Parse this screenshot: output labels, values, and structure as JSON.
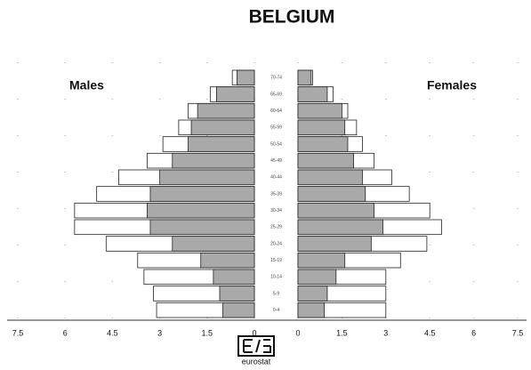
{
  "chart_data": {
    "type": "pyramid",
    "title": "BELGIUM",
    "left_label": "Males",
    "right_label": "Females",
    "logo_text": "eurostat",
    "categories": [
      "70-74",
      "65-69",
      "60-64",
      "55-59",
      "50-54",
      "45-49",
      "40-44",
      "35-39",
      "30-34",
      "25-29",
      "20-24",
      "15-19",
      "10-14",
      "5-9",
      "0-4"
    ],
    "series": [
      {
        "side": "left",
        "color": "#ffffff",
        "values": [
          0.7,
          1.4,
          2.1,
          2.4,
          2.9,
          3.4,
          4.3,
          5.0,
          5.7,
          5.7,
          4.7,
          3.7,
          3.5,
          3.2,
          3.1
        ]
      },
      {
        "side": "left",
        "color": "#a9a9a9",
        "values": [
          0.55,
          1.2,
          1.8,
          2.0,
          2.1,
          2.6,
          3.0,
          3.3,
          3.4,
          3.3,
          2.6,
          1.7,
          1.3,
          1.1,
          1.0
        ]
      },
      {
        "side": "right",
        "color": "#ffffff",
        "values": [
          0.5,
          1.2,
          1.7,
          2.0,
          2.2,
          2.6,
          3.2,
          3.8,
          4.5,
          4.9,
          4.4,
          3.5,
          3.0,
          3.0,
          3.0
        ]
      },
      {
        "side": "right",
        "color": "#a9a9a9",
        "values": [
          0.45,
          1.0,
          1.5,
          1.6,
          1.7,
          1.9,
          2.2,
          2.3,
          2.6,
          2.9,
          2.5,
          1.6,
          1.3,
          1.0,
          0.9
        ]
      }
    ],
    "xlim": [
      0,
      7.5
    ],
    "xticks": [
      0,
      1.5,
      3,
      4.5,
      6,
      7.5
    ],
    "grid": true
  }
}
